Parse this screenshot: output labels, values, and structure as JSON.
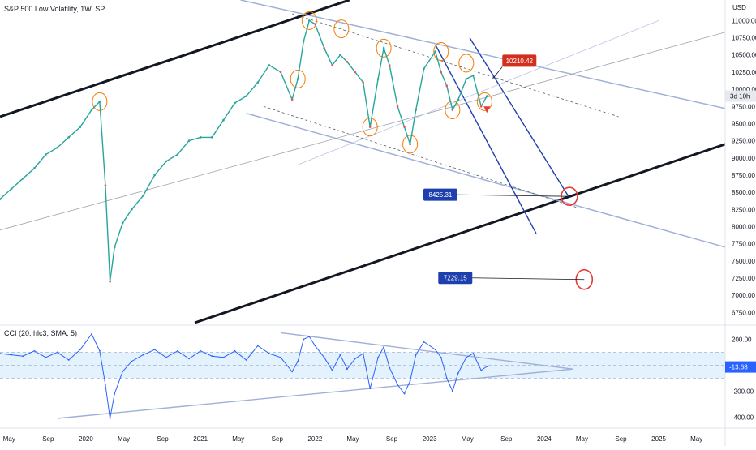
{
  "header": {
    "title": "S&P 500 Low Volatility, 1W, SP",
    "currency": "USD"
  },
  "price_panel": {
    "last_price_tag": "3d 10h",
    "callouts": [
      {
        "label": "10210.42",
        "date": 2023.55,
        "price": 10150,
        "color": "#d32f1f"
      },
      {
        "label": "8425.31",
        "date": 2024.22,
        "price": 8440,
        "color": "#1e3fae"
      },
      {
        "label": "7229.15",
        "date": 2024.35,
        "price": 7229,
        "color": "#1e3fae"
      }
    ]
  },
  "cci_panel": {
    "title": "CCI (20, hlc3, SMA, 5)",
    "current_value": "-13.68",
    "band_upper": 100,
    "band_lower": -100
  },
  "chart_data": [
    {
      "type": "line",
      "title": "S&P 500 Low Volatility, 1W, SP",
      "ylabel": "USD",
      "ylim": [
        6600,
        11300
      ],
      "xlim": [
        2019.25,
        2025.58
      ],
      "yticks": [
        6750,
        7000,
        7250,
        7500,
        7750,
        8000,
        8250,
        8500,
        8750,
        9000,
        9250,
        9500,
        9750,
        10000,
        10250,
        10500,
        10750,
        11000
      ],
      "ytick_labels": [
        "6750.00",
        "7000.00",
        "7250.00",
        "7500.00",
        "7750.00",
        "8000.00",
        "8250.00",
        "8500.00",
        "8750.00",
        "9000.00",
        "9250.00",
        "9500.00",
        "9750.00",
        "10000.00",
        "10250.00",
        "10500.00",
        "10750.00",
        "11000.00"
      ],
      "xticks": [
        {
          "label": "May",
          "t": 2019.33
        },
        {
          "label": "Sep",
          "t": 2019.67
        },
        {
          "label": "2020",
          "t": 2020.0
        },
        {
          "label": "May",
          "t": 2020.33
        },
        {
          "label": "Sep",
          "t": 2020.67
        },
        {
          "label": "2021",
          "t": 2021.0
        },
        {
          "label": "May",
          "t": 2021.33
        },
        {
          "label": "Sep",
          "t": 2021.67
        },
        {
          "label": "2022",
          "t": 2022.0
        },
        {
          "label": "May",
          "t": 2022.33
        },
        {
          "label": "Sep",
          "t": 2022.67
        },
        {
          "label": "2023",
          "t": 2023.0
        },
        {
          "label": "May",
          "t": 2023.33
        },
        {
          "label": "Sep",
          "t": 2023.67
        },
        {
          "label": "2024",
          "t": 2024.0
        },
        {
          "label": "May",
          "t": 2024.33
        },
        {
          "label": "Sep",
          "t": 2024.67
        },
        {
          "label": "2025",
          "t": 2025.0
        },
        {
          "label": "May",
          "t": 2025.33
        }
      ],
      "series": [
        {
          "x": [
            2019.25,
            2019.35,
            2019.45,
            2019.55,
            2019.65,
            2019.75,
            2019.85,
            2019.95,
            2020.05,
            2020.12,
            2020.17,
            2020.21,
            2020.25,
            2020.32,
            2020.4,
            2020.5,
            2020.6,
            2020.7,
            2020.8,
            2020.9,
            2021.0,
            2021.1,
            2021.2,
            2021.3,
            2021.4,
            2021.5,
            2021.6,
            2021.7,
            2021.8,
            2021.85,
            2021.9,
            2021.95,
            2022.0,
            2022.08,
            2022.15,
            2022.22,
            2022.28,
            2022.35,
            2022.42,
            2022.48,
            2022.55,
            2022.6,
            2022.65,
            2022.72,
            2022.78,
            2022.83,
            2022.88,
            2022.95,
            2023.05,
            2023.1,
            2023.15,
            2023.2,
            2023.25,
            2023.32,
            2023.38,
            2023.45,
            2023.5
          ],
          "y": [
            8400,
            8550,
            8700,
            8850,
            9050,
            9150,
            9300,
            9450,
            9700,
            9820,
            8600,
            7200,
            7700,
            8050,
            8250,
            8450,
            8750,
            8950,
            9050,
            9250,
            9300,
            9300,
            9550,
            9800,
            9900,
            10100,
            10350,
            10250,
            9850,
            10150,
            10700,
            11000,
            10950,
            10600,
            10350,
            10500,
            10400,
            10250,
            10100,
            9450,
            10150,
            10600,
            10350,
            9750,
            9450,
            9200,
            9700,
            10300,
            10550,
            10250,
            10050,
            9700,
            9850,
            10150,
            10200,
            9750,
            9900
          ]
        }
      ],
      "annotations": [
        "10210.42",
        "8425.31",
        "7229.15"
      ]
    },
    {
      "type": "line",
      "title": "CCI (20, hlc3, SMA, 5)",
      "ylim": [
        -460,
        290
      ],
      "yticks": [
        200,
        -200,
        -400
      ],
      "ytick_labels": [
        "200.00",
        "-200.00",
        "-400.00"
      ],
      "series": [
        {
          "x": [
            2019.25,
            2019.35,
            2019.45,
            2019.55,
            2019.65,
            2019.75,
            2019.85,
            2019.95,
            2020.05,
            2020.12,
            2020.17,
            2020.21,
            2020.25,
            2020.32,
            2020.4,
            2020.5,
            2020.6,
            2020.7,
            2020.8,
            2020.9,
            2021.0,
            2021.1,
            2021.2,
            2021.3,
            2021.4,
            2021.5,
            2021.6,
            2021.7,
            2021.8,
            2021.85,
            2021.9,
            2021.95,
            2022.0,
            2022.08,
            2022.15,
            2022.22,
            2022.28,
            2022.35,
            2022.42,
            2022.48,
            2022.55,
            2022.6,
            2022.65,
            2022.72,
            2022.78,
            2022.83,
            2022.88,
            2022.95,
            2023.05,
            2023.1,
            2023.15,
            2023.2,
            2023.25,
            2023.32,
            2023.38,
            2023.45,
            2023.5
          ],
          "y": [
            90,
            80,
            70,
            110,
            60,
            100,
            40,
            120,
            240,
            110,
            -150,
            -410,
            -220,
            -50,
            30,
            80,
            120,
            60,
            110,
            50,
            110,
            70,
            60,
            110,
            40,
            150,
            90,
            60,
            -50,
            30,
            200,
            220,
            150,
            60,
            -40,
            80,
            -30,
            50,
            90,
            -180,
            60,
            140,
            -20,
            -150,
            -220,
            -120,
            80,
            180,
            120,
            60,
            -100,
            -200,
            -60,
            60,
            90,
            -40,
            -10
          ]
        }
      ],
      "annotations": [
        "-13.68"
      ]
    }
  ]
}
